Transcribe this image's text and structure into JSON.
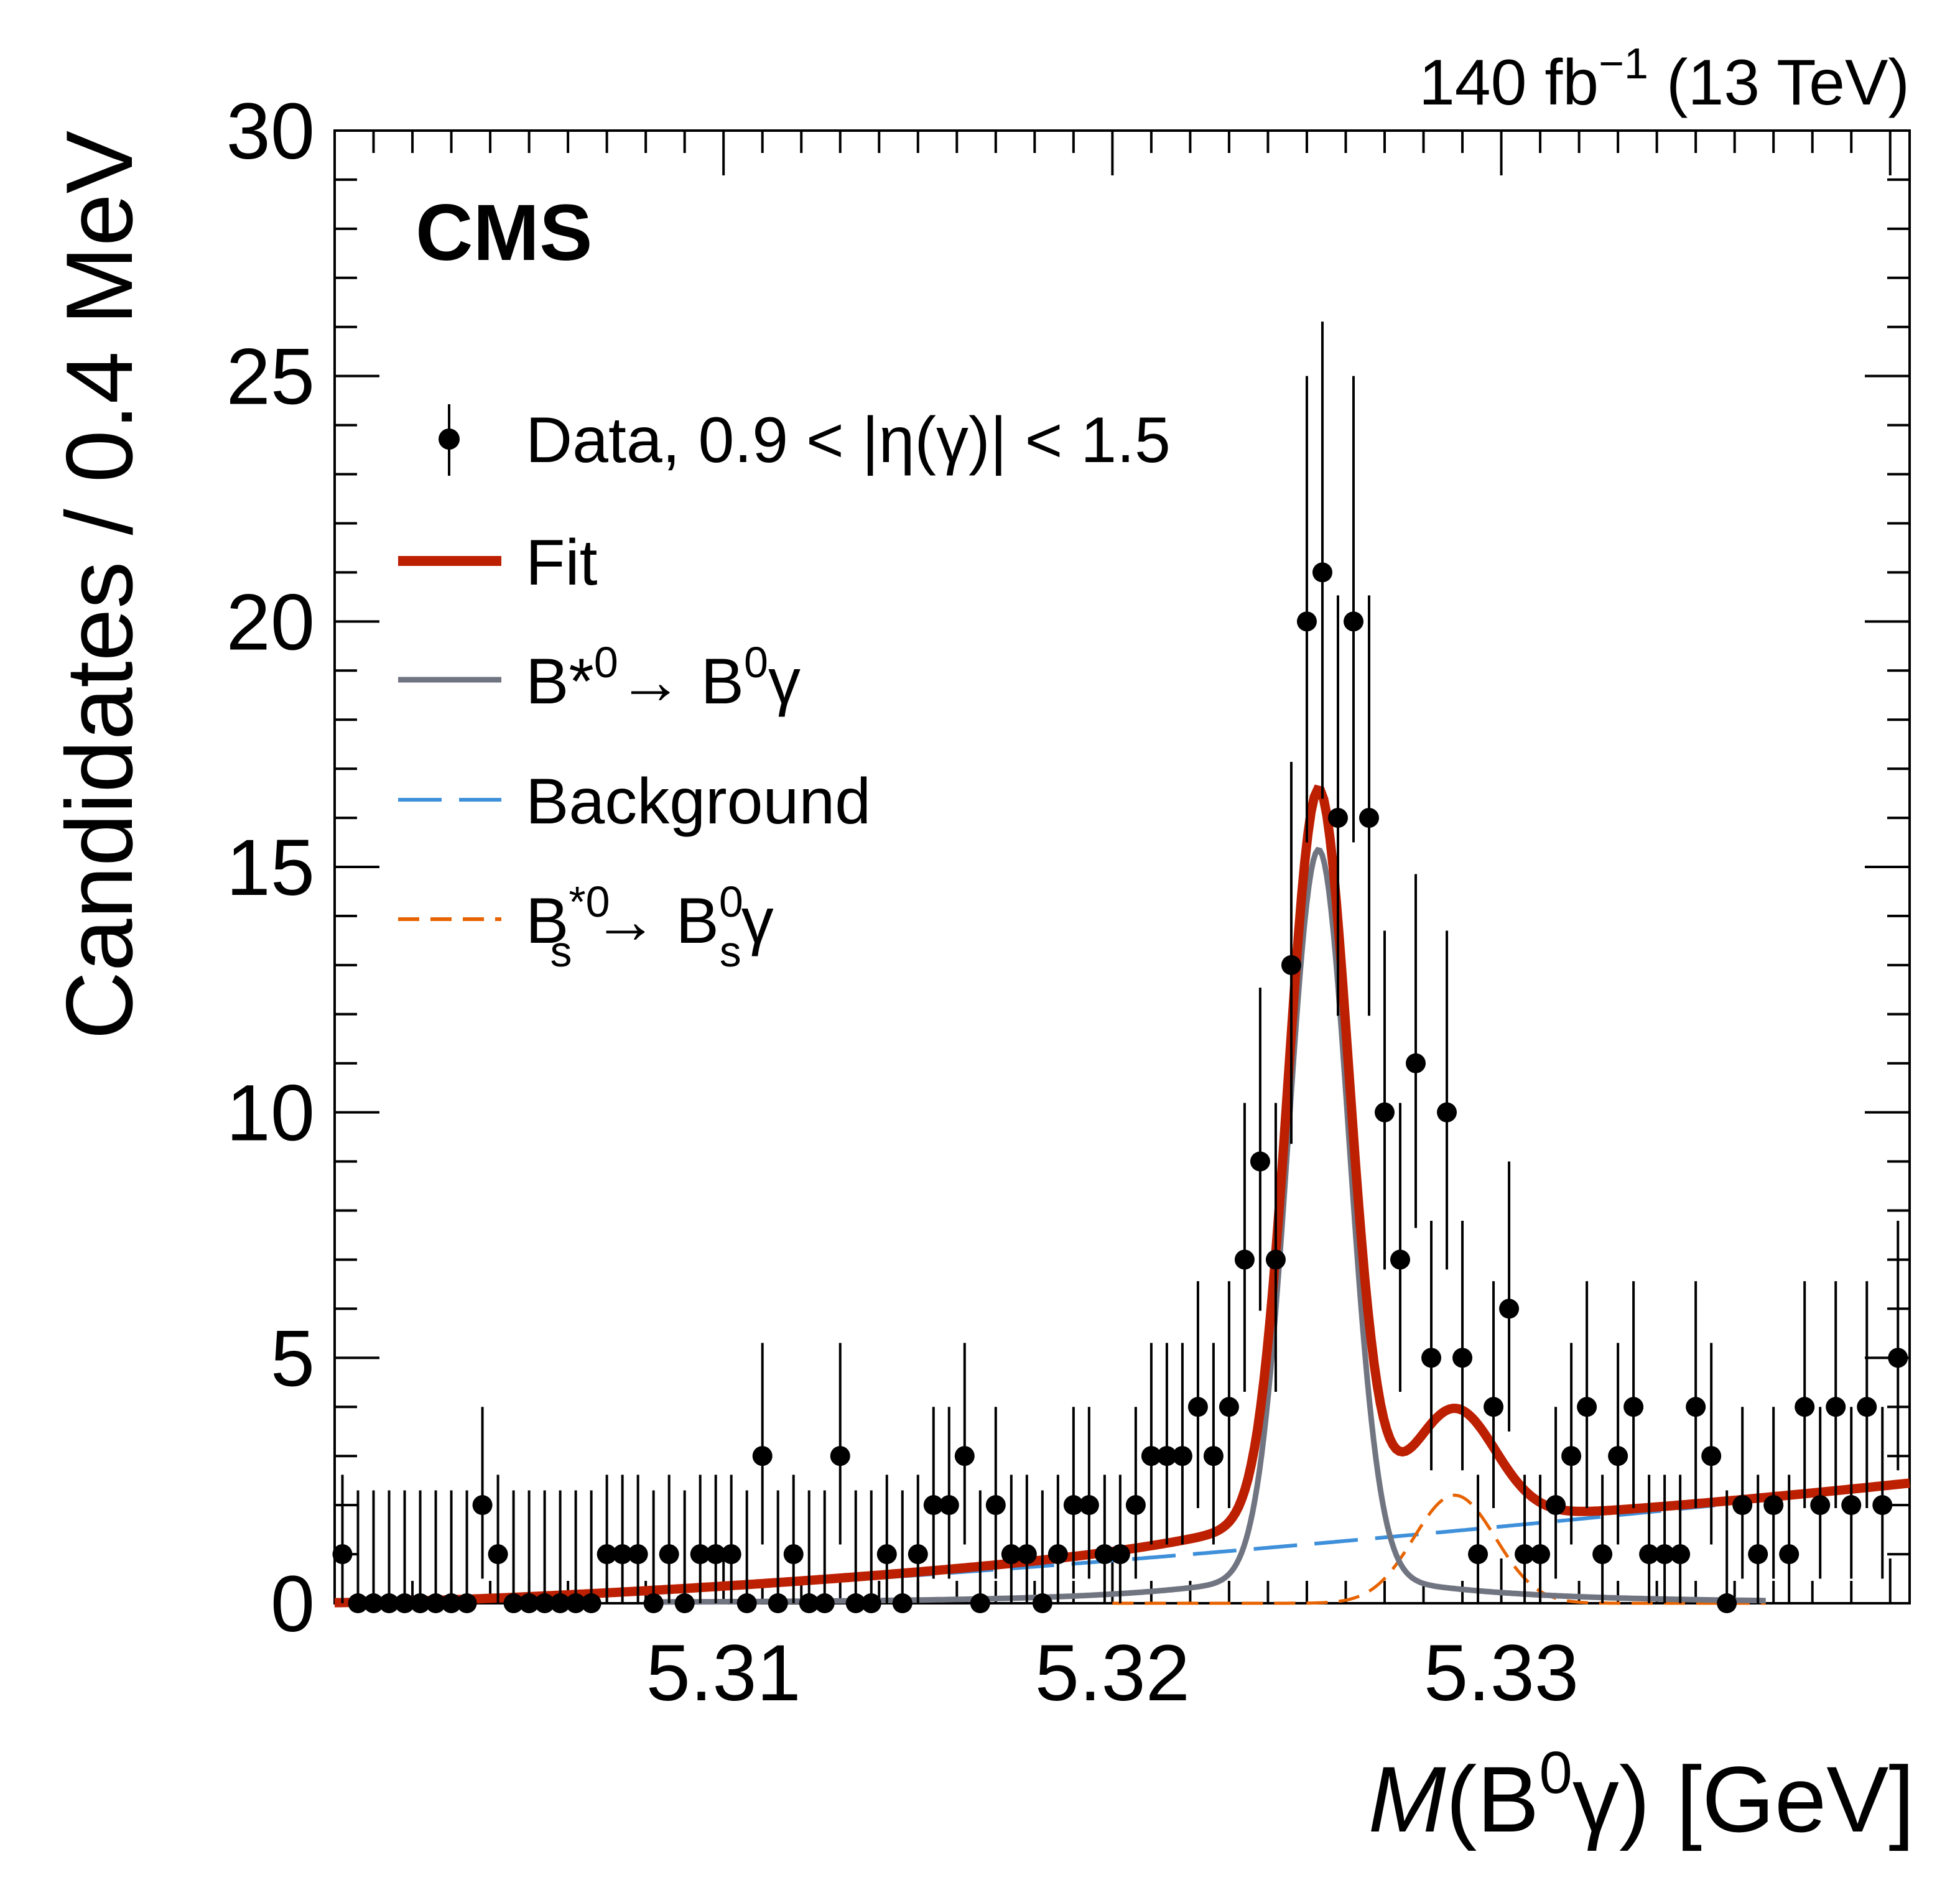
{
  "chart_data": {
    "type": "scatter",
    "title": "",
    "experiment_label": "CMS",
    "lumi_label": {
      "value": "140 fb",
      "exponent": "−1",
      "energy": " (13 TeV)"
    },
    "xlabel": {
      "var": "M",
      "open": "(B",
      "sup": "0",
      "close": "γ) [GeV]"
    },
    "ylabel": "Candidates / 0.4 MeV",
    "xlim": [
      5.3,
      5.3405
    ],
    "ylim": [
      0,
      30
    ],
    "xticks": [
      5.31,
      5.32,
      5.33
    ],
    "yticks": [
      0,
      5,
      10,
      15,
      20,
      25,
      30
    ],
    "legend": {
      "position": "top-left",
      "data": {
        "text": "Data, 0.9 < |η(γ)| < 1.5"
      },
      "fit": {
        "text": "Fit"
      },
      "signal": {
        "a": "B*",
        "a_sup": "0",
        "b": "→ B",
        "b_sup": "0",
        "c": "γ"
      },
      "background": {
        "text": "Background"
      },
      "bs": {
        "a": "B",
        "a_sup": "*0",
        "a_sub": "s",
        "b": "→ B",
        "b_sup": "0",
        "b_sub": "s",
        "c": "γ"
      }
    },
    "colors": {
      "fit": "#bd1f01",
      "signal": "#717581",
      "background": "#3f90da",
      "bs": "#e76300",
      "data": "#000000"
    },
    "series": [
      {
        "type": "points",
        "x": [
          5.3002,
          5.3006,
          5.301,
          5.3014,
          5.3018,
          5.3022,
          5.3026,
          5.303,
          5.3034,
          5.3038,
          5.3042,
          5.3046,
          5.305,
          5.3054,
          5.3058,
          5.3062,
          5.3066,
          5.307,
          5.3074,
          5.3078,
          5.3082,
          5.3086,
          5.309,
          5.3094,
          5.3098,
          5.3102,
          5.3106,
          5.311,
          5.3114,
          5.3118,
          5.3122,
          5.3126,
          5.313,
          5.3134,
          5.3138,
          5.3142,
          5.3146,
          5.315,
          5.3154,
          5.3158,
          5.3162,
          5.3166,
          5.317,
          5.3174,
          5.3178,
          5.3182,
          5.3186,
          5.319,
          5.3194,
          5.3198,
          5.3202,
          5.3206,
          5.321,
          5.3214,
          5.3218,
          5.3222,
          5.3226,
          5.323,
          5.3234,
          5.3238,
          5.3242,
          5.3246,
          5.325,
          5.3254,
          5.3258,
          5.3262,
          5.3266,
          5.327,
          5.3274,
          5.3278,
          5.3282,
          5.3286,
          5.329,
          5.3294,
          5.3298,
          5.3302,
          5.3306,
          5.331,
          5.3314,
          5.3318,
          5.3322,
          5.3326,
          5.333,
          5.3334,
          5.3338,
          5.3342,
          5.3346,
          5.335,
          5.3354,
          5.3358,
          5.3362,
          5.3366,
          5.337,
          5.3374,
          5.3378,
          5.3382,
          5.3386,
          5.339,
          5.3394,
          5.3398,
          5.3402
        ],
        "y": [
          1,
          0,
          0,
          0,
          0,
          0,
          0,
          0,
          0,
          2,
          1,
          0,
          0,
          0,
          0,
          0,
          0,
          1,
          1,
          1,
          0,
          1,
          0,
          1,
          1,
          1,
          0,
          3,
          0,
          1,
          0,
          0,
          3,
          0,
          0,
          1,
          0,
          1,
          2,
          2,
          3,
          0,
          2,
          1,
          1,
          0,
          1,
          2,
          2,
          1,
          1,
          2,
          3,
          3,
          3,
          4,
          3,
          4,
          7,
          9,
          7,
          13,
          20,
          21,
          16,
          20,
          16,
          10,
          7,
          11,
          5,
          10,
          5,
          1,
          4,
          6,
          1,
          1,
          2,
          3,
          4,
          1,
          3,
          4,
          1,
          1,
          1,
          4,
          3,
          0,
          2,
          1,
          2,
          1,
          4,
          2,
          4,
          2,
          4,
          2,
          5
        ]
      },
      {
        "name": "Fit",
        "type": "curve"
      },
      {
        "name": "B*0→B0γ",
        "type": "curve"
      },
      {
        "name": "Background",
        "type": "curve"
      },
      {
        "name": "Bs*0→Bs0γ",
        "type": "curve"
      }
    ],
    "grid": false
  }
}
